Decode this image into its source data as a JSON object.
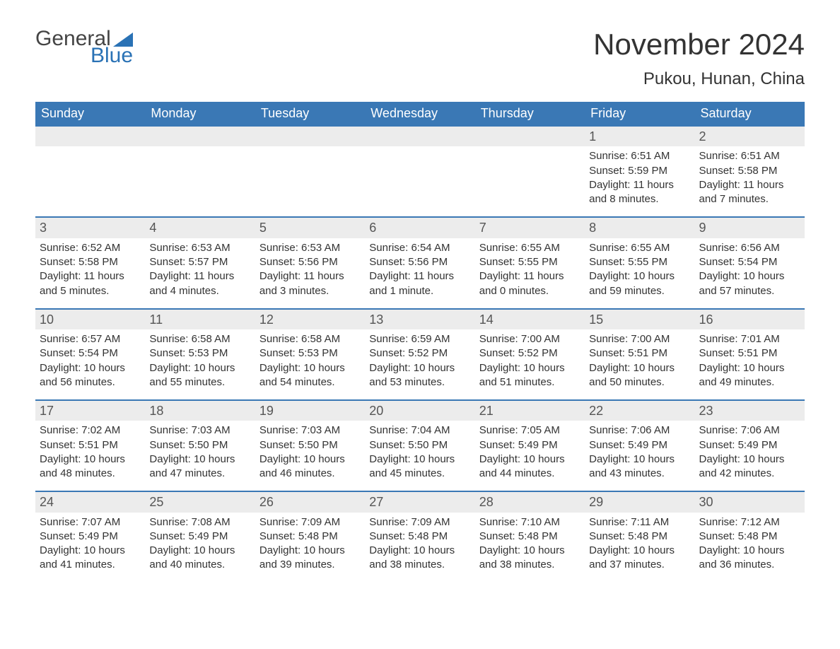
{
  "logo": {
    "text_top": "General",
    "text_bottom": "Blue",
    "brand_color": "#2a72b5",
    "gray_color": "#444444"
  },
  "title": "November 2024",
  "location": "Pukou, Hunan, China",
  "colors": {
    "header_bg": "#3a78b5",
    "header_text": "#ffffff",
    "row_border": "#3a78b5",
    "daybar_bg": "#ececec",
    "body_text": "#333333",
    "page_bg": "#ffffff"
  },
  "weekdays": [
    "Sunday",
    "Monday",
    "Tuesday",
    "Wednesday",
    "Thursday",
    "Friday",
    "Saturday"
  ],
  "weeks": [
    [
      {
        "day": "",
        "lines": []
      },
      {
        "day": "",
        "lines": []
      },
      {
        "day": "",
        "lines": []
      },
      {
        "day": "",
        "lines": []
      },
      {
        "day": "",
        "lines": []
      },
      {
        "day": "1",
        "lines": [
          "Sunrise: 6:51 AM",
          "Sunset: 5:59 PM",
          "Daylight: 11 hours",
          "and 8 minutes."
        ]
      },
      {
        "day": "2",
        "lines": [
          "Sunrise: 6:51 AM",
          "Sunset: 5:58 PM",
          "Daylight: 11 hours",
          "and 7 minutes."
        ]
      }
    ],
    [
      {
        "day": "3",
        "lines": [
          "Sunrise: 6:52 AM",
          "Sunset: 5:58 PM",
          "Daylight: 11 hours",
          "and 5 minutes."
        ]
      },
      {
        "day": "4",
        "lines": [
          "Sunrise: 6:53 AM",
          "Sunset: 5:57 PM",
          "Daylight: 11 hours",
          "and 4 minutes."
        ]
      },
      {
        "day": "5",
        "lines": [
          "Sunrise: 6:53 AM",
          "Sunset: 5:56 PM",
          "Daylight: 11 hours",
          "and 3 minutes."
        ]
      },
      {
        "day": "6",
        "lines": [
          "Sunrise: 6:54 AM",
          "Sunset: 5:56 PM",
          "Daylight: 11 hours",
          "and 1 minute."
        ]
      },
      {
        "day": "7",
        "lines": [
          "Sunrise: 6:55 AM",
          "Sunset: 5:55 PM",
          "Daylight: 11 hours",
          "and 0 minutes."
        ]
      },
      {
        "day": "8",
        "lines": [
          "Sunrise: 6:55 AM",
          "Sunset: 5:55 PM",
          "Daylight: 10 hours",
          "and 59 minutes."
        ]
      },
      {
        "day": "9",
        "lines": [
          "Sunrise: 6:56 AM",
          "Sunset: 5:54 PM",
          "Daylight: 10 hours",
          "and 57 minutes."
        ]
      }
    ],
    [
      {
        "day": "10",
        "lines": [
          "Sunrise: 6:57 AM",
          "Sunset: 5:54 PM",
          "Daylight: 10 hours",
          "and 56 minutes."
        ]
      },
      {
        "day": "11",
        "lines": [
          "Sunrise: 6:58 AM",
          "Sunset: 5:53 PM",
          "Daylight: 10 hours",
          "and 55 minutes."
        ]
      },
      {
        "day": "12",
        "lines": [
          "Sunrise: 6:58 AM",
          "Sunset: 5:53 PM",
          "Daylight: 10 hours",
          "and 54 minutes."
        ]
      },
      {
        "day": "13",
        "lines": [
          "Sunrise: 6:59 AM",
          "Sunset: 5:52 PM",
          "Daylight: 10 hours",
          "and 53 minutes."
        ]
      },
      {
        "day": "14",
        "lines": [
          "Sunrise: 7:00 AM",
          "Sunset: 5:52 PM",
          "Daylight: 10 hours",
          "and 51 minutes."
        ]
      },
      {
        "day": "15",
        "lines": [
          "Sunrise: 7:00 AM",
          "Sunset: 5:51 PM",
          "Daylight: 10 hours",
          "and 50 minutes."
        ]
      },
      {
        "day": "16",
        "lines": [
          "Sunrise: 7:01 AM",
          "Sunset: 5:51 PM",
          "Daylight: 10 hours",
          "and 49 minutes."
        ]
      }
    ],
    [
      {
        "day": "17",
        "lines": [
          "Sunrise: 7:02 AM",
          "Sunset: 5:51 PM",
          "Daylight: 10 hours",
          "and 48 minutes."
        ]
      },
      {
        "day": "18",
        "lines": [
          "Sunrise: 7:03 AM",
          "Sunset: 5:50 PM",
          "Daylight: 10 hours",
          "and 47 minutes."
        ]
      },
      {
        "day": "19",
        "lines": [
          "Sunrise: 7:03 AM",
          "Sunset: 5:50 PM",
          "Daylight: 10 hours",
          "and 46 minutes."
        ]
      },
      {
        "day": "20",
        "lines": [
          "Sunrise: 7:04 AM",
          "Sunset: 5:50 PM",
          "Daylight: 10 hours",
          "and 45 minutes."
        ]
      },
      {
        "day": "21",
        "lines": [
          "Sunrise: 7:05 AM",
          "Sunset: 5:49 PM",
          "Daylight: 10 hours",
          "and 44 minutes."
        ]
      },
      {
        "day": "22",
        "lines": [
          "Sunrise: 7:06 AM",
          "Sunset: 5:49 PM",
          "Daylight: 10 hours",
          "and 43 minutes."
        ]
      },
      {
        "day": "23",
        "lines": [
          "Sunrise: 7:06 AM",
          "Sunset: 5:49 PM",
          "Daylight: 10 hours",
          "and 42 minutes."
        ]
      }
    ],
    [
      {
        "day": "24",
        "lines": [
          "Sunrise: 7:07 AM",
          "Sunset: 5:49 PM",
          "Daylight: 10 hours",
          "and 41 minutes."
        ]
      },
      {
        "day": "25",
        "lines": [
          "Sunrise: 7:08 AM",
          "Sunset: 5:49 PM",
          "Daylight: 10 hours",
          "and 40 minutes."
        ]
      },
      {
        "day": "26",
        "lines": [
          "Sunrise: 7:09 AM",
          "Sunset: 5:48 PM",
          "Daylight: 10 hours",
          "and 39 minutes."
        ]
      },
      {
        "day": "27",
        "lines": [
          "Sunrise: 7:09 AM",
          "Sunset: 5:48 PM",
          "Daylight: 10 hours",
          "and 38 minutes."
        ]
      },
      {
        "day": "28",
        "lines": [
          "Sunrise: 7:10 AM",
          "Sunset: 5:48 PM",
          "Daylight: 10 hours",
          "and 38 minutes."
        ]
      },
      {
        "day": "29",
        "lines": [
          "Sunrise: 7:11 AM",
          "Sunset: 5:48 PM",
          "Daylight: 10 hours",
          "and 37 minutes."
        ]
      },
      {
        "day": "30",
        "lines": [
          "Sunrise: 7:12 AM",
          "Sunset: 5:48 PM",
          "Daylight: 10 hours",
          "and 36 minutes."
        ]
      }
    ]
  ]
}
